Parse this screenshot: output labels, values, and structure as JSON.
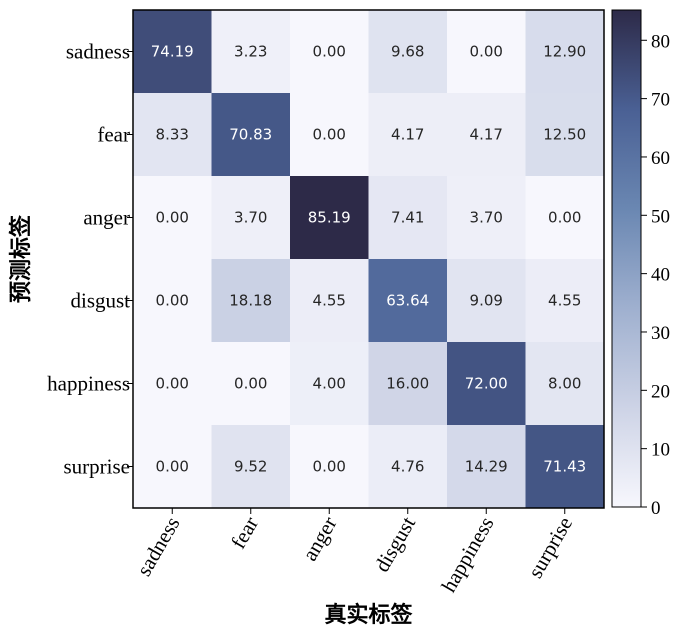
{
  "chart_data": {
    "type": "heatmap",
    "xlabel": "真实标签",
    "ylabel": "预测标签",
    "x_categories": [
      "sadness",
      "fear",
      "anger",
      "disgust",
      "happiness",
      "surprise"
    ],
    "y_categories": [
      "sadness",
      "fear",
      "anger",
      "disgust",
      "happiness",
      "surprise"
    ],
    "values": [
      [
        "74.19",
        "3.23",
        "0.00",
        "9.68",
        "0.00",
        "12.90"
      ],
      [
        "8.33",
        "70.83",
        "0.00",
        "4.17",
        "4.17",
        "12.50"
      ],
      [
        "0.00",
        "3.70",
        "85.19",
        "7.41",
        "3.70",
        "0.00"
      ],
      [
        "0.00",
        "18.18",
        "4.55",
        "63.64",
        "9.09",
        "4.55"
      ],
      [
        "0.00",
        "0.00",
        "4.00",
        "16.00",
        "72.00",
        "8.00"
      ],
      [
        "0.00",
        "9.52",
        "0.00",
        "4.76",
        "14.29",
        "71.43"
      ]
    ],
    "colorbar": {
      "range": [
        0,
        85.19
      ],
      "ticks": [
        "0",
        "10",
        "20",
        "30",
        "40",
        "50",
        "60",
        "70",
        "80"
      ],
      "colors": [
        "#f7f7fd",
        "#cdd3e6",
        "#9fb0cf",
        "#6a87b2",
        "#4a6094",
        "#2d2a48"
      ]
    },
    "grid": false
  }
}
